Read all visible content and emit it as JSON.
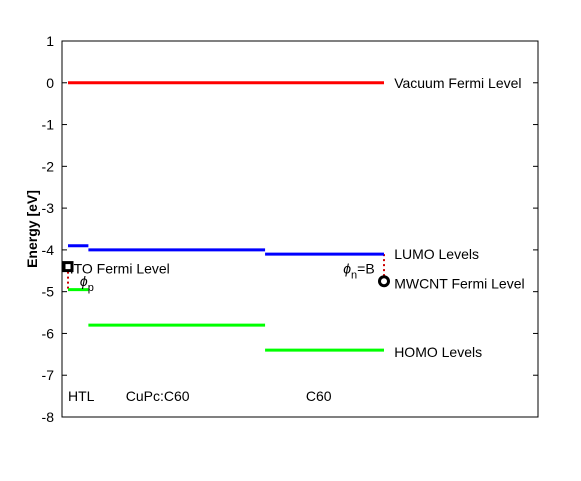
{
  "chart_data": {
    "type": "line",
    "title": "",
    "xlabel": "",
    "ylabel": "Energy [eV]",
    "ylim": [
      -8,
      1
    ],
    "xlim": [
      -0.05,
      1.0
    ],
    "grid": false,
    "yticks": [
      1,
      0,
      -1,
      -2,
      -3,
      -4,
      -5,
      -6,
      -7,
      -8
    ],
    "ytick_labels": [
      "1",
      "0",
      "-1",
      "-2",
      "-3",
      "-4",
      "-5",
      "-6",
      "-7",
      "-8"
    ],
    "series": [
      {
        "color": "#ff0000",
        "segments": [
          {
            "x": [
              0,
              0.93
            ],
            "y": 0
          }
        ]
      },
      {
        "color": "#0000ff",
        "segments": [
          {
            "x": [
              0,
              0.06
            ],
            "y": -3.9
          },
          {
            "x": [
              0.06,
              0.58
            ],
            "y": -4.0
          },
          {
            "x": [
              0.58,
              0.93
            ],
            "y": -4.1
          }
        ]
      },
      {
        "color": "#00ff00",
        "segments": [
          {
            "x": [
              0,
              0.06
            ],
            "y": -4.95
          },
          {
            "x": [
              0.06,
              0.58
            ],
            "y": -5.8
          },
          {
            "x": [
              0.58,
              0.93
            ],
            "y": -6.4
          }
        ]
      }
    ],
    "dotted_connectors": [
      {
        "color": "#cc0000",
        "x": 0,
        "y": [
          -4.4,
          -4.95
        ]
      },
      {
        "color": "#cc0000",
        "x": 0.93,
        "y": [
          -4.1,
          -4.75
        ]
      }
    ],
    "markers": [
      {
        "shape": "square",
        "x": 0,
        "y": -4.4
      },
      {
        "shape": "circle",
        "x": 0.93,
        "y": -4.75
      }
    ],
    "annotations": [
      {
        "text": "Vacuum Fermi Level",
        "x": 0.96,
        "y": 0
      },
      {
        "text": "LUMO Levels",
        "x": 0.96,
        "y": -4.1
      },
      {
        "text": "ITO Fermi Level",
        "x": 0.005,
        "y": -4.45
      },
      {
        "text": "MWCNT Fermi Level",
        "x": 0.96,
        "y": -4.8
      },
      {
        "text": "HOMO Levels",
        "x": 0.96,
        "y": -6.45
      },
      {
        "text": "HTL",
        "x": 0.0,
        "y": -7.5
      },
      {
        "text": "CuPc:C60",
        "x": 0.17,
        "y": -7.5
      },
      {
        "text": "C60",
        "x": 0.7,
        "y": -7.5
      }
    ],
    "phi_p": {
      "symbol": "ϕ",
      "subscript": "p",
      "x": 0.035,
      "y": -4.75
    },
    "phi_n": {
      "symbol": "ϕ",
      "subscript": "n",
      "suffix": "=B",
      "x": 0.81,
      "y": -4.45
    }
  }
}
